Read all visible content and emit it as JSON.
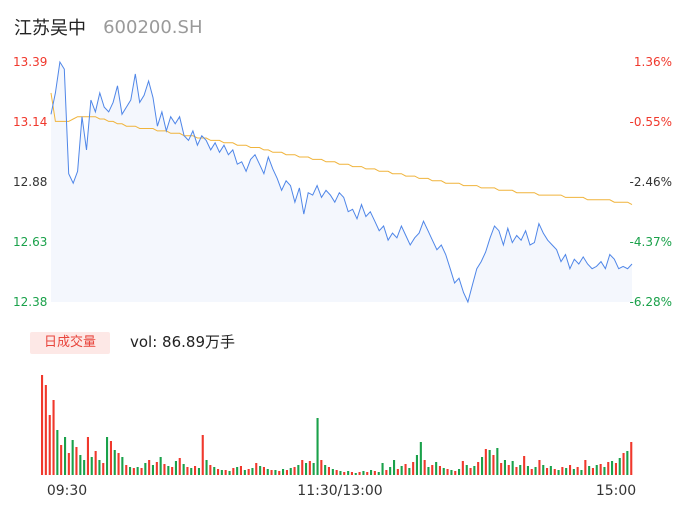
{
  "header": {
    "name": "江苏吴中",
    "code": "600200.SH"
  },
  "colors": {
    "up": "#f0382c",
    "down": "#1aa14a",
    "price_line": "#4f86e8",
    "avg_line": "#f0b43c",
    "area": "#f4f7fd"
  },
  "volume": {
    "badge": "日成交量",
    "text": "vol: 86.89万手"
  },
  "chart_data": {
    "type": "line",
    "title": "",
    "ylim": [
      12.38,
      13.39
    ],
    "price_ticks": [
      "13.39",
      "13.14",
      "12.88",
      "12.63",
      "12.38"
    ],
    "pct_ticks": [
      "1.36%",
      "-0.55%",
      "-2.46%",
      "-4.37%",
      "-6.28%"
    ],
    "time_labels": [
      "09:30",
      "11:30/13:00",
      "15:00"
    ],
    "series": [
      {
        "values": [
          13.17,
          13.26,
          13.39,
          13.36,
          12.92,
          12.88,
          12.93,
          13.16,
          13.02,
          13.23,
          13.18,
          13.26,
          13.2,
          13.18,
          13.22,
          13.29,
          13.17,
          13.2,
          13.23,
          13.34,
          13.22,
          13.25,
          13.31,
          13.24,
          13.12,
          13.18,
          13.1,
          13.16,
          13.13,
          13.16,
          13.08,
          13.06,
          13.1,
          13.04,
          13.08,
          13.06,
          13.02,
          13.05,
          13.01,
          13.04,
          13.0,
          13.02,
          12.96,
          12.97,
          12.93,
          12.98,
          13.0,
          12.96,
          12.92,
          12.99,
          12.94,
          12.9,
          12.85,
          12.89,
          12.87,
          12.8,
          12.86,
          12.75,
          12.84,
          12.83,
          12.87,
          12.82,
          12.85,
          12.83,
          12.8,
          12.84,
          12.82,
          12.76,
          12.77,
          12.73,
          12.79,
          12.74,
          12.76,
          12.72,
          12.68,
          12.7,
          12.64,
          12.67,
          12.65,
          12.7,
          12.66,
          12.62,
          12.65,
          12.67,
          12.72,
          12.68,
          12.64,
          12.6,
          12.62,
          12.58,
          12.52,
          12.46,
          12.48,
          12.42,
          12.38,
          12.45,
          12.52,
          12.55,
          12.59,
          12.65,
          12.7,
          12.68,
          12.62,
          12.69,
          12.63,
          12.66,
          12.64,
          12.68,
          12.62,
          12.63,
          12.71,
          12.67,
          12.64,
          12.62,
          12.6,
          12.55,
          12.58,
          12.52,
          12.56,
          12.54,
          12.57,
          12.54,
          12.52,
          12.53,
          12.55,
          12.52,
          12.58,
          12.56,
          12.52,
          12.53,
          12.52,
          12.54
        ],
        "style": "price"
      },
      {
        "values": [
          13.26,
          13.14,
          13.14,
          13.14,
          13.14,
          13.15,
          13.16,
          13.16,
          13.16,
          13.16,
          13.16,
          13.15,
          13.15,
          13.14,
          13.14,
          13.13,
          13.13,
          13.12,
          13.12,
          13.12,
          13.11,
          13.11,
          13.11,
          13.11,
          13.1,
          13.1,
          13.1,
          13.09,
          13.09,
          13.09,
          13.08,
          13.08,
          13.08,
          13.07,
          13.07,
          13.07,
          13.06,
          13.06,
          13.06,
          13.05,
          13.05,
          13.05,
          13.04,
          13.04,
          13.04,
          13.03,
          13.03,
          13.03,
          13.02,
          13.02,
          13.01,
          13.01,
          13.01,
          13.0,
          13.0,
          13.0,
          12.99,
          12.99,
          12.99,
          12.98,
          12.98,
          12.98,
          12.97,
          12.97,
          12.97,
          12.96,
          12.96,
          12.96,
          12.95,
          12.95,
          12.95,
          12.94,
          12.94,
          12.94,
          12.93,
          12.93,
          12.93,
          12.92,
          12.92,
          12.92,
          12.91,
          12.91,
          12.91,
          12.9,
          12.9,
          12.9,
          12.89,
          12.89,
          12.89,
          12.88,
          12.88,
          12.88,
          12.88,
          12.87,
          12.87,
          12.87,
          12.87,
          12.86,
          12.86,
          12.86,
          12.86,
          12.85,
          12.85,
          12.85,
          12.85,
          12.84,
          12.84,
          12.84,
          12.84,
          12.84,
          12.83,
          12.83,
          12.83,
          12.83,
          12.83,
          12.83,
          12.82,
          12.82,
          12.82,
          12.82,
          12.82,
          12.81,
          12.81,
          12.81,
          12.81,
          12.81,
          12.81,
          12.8,
          12.8,
          12.8,
          12.8,
          12.79
        ],
        "style": "average"
      }
    ],
    "volume_bars": [
      {
        "v": 100,
        "d": "up"
      },
      {
        "v": 90,
        "d": "up"
      },
      {
        "v": 60,
        "d": "up"
      },
      {
        "v": 75,
        "d": "up"
      },
      {
        "v": 45,
        "d": "down"
      },
      {
        "v": 30,
        "d": "up"
      },
      {
        "v": 38,
        "d": "down"
      },
      {
        "v": 22,
        "d": "up"
      },
      {
        "v": 35,
        "d": "down"
      },
      {
        "v": 28,
        "d": "up"
      },
      {
        "v": 20,
        "d": "down"
      },
      {
        "v": 15,
        "d": "down"
      },
      {
        "v": 38,
        "d": "up"
      },
      {
        "v": 18,
        "d": "down"
      },
      {
        "v": 24,
        "d": "up"
      },
      {
        "v": 15,
        "d": "down"
      },
      {
        "v": 12,
        "d": "up"
      },
      {
        "v": 38,
        "d": "down"
      },
      {
        "v": 34,
        "d": "up"
      },
      {
        "v": 25,
        "d": "down"
      },
      {
        "v": 22,
        "d": "up"
      },
      {
        "v": 18,
        "d": "down"
      },
      {
        "v": 10,
        "d": "up"
      },
      {
        "v": 8,
        "d": "down"
      },
      {
        "v": 7,
        "d": "up"
      },
      {
        "v": 8,
        "d": "down"
      },
      {
        "v": 7,
        "d": "up"
      },
      {
        "v": 12,
        "d": "down"
      },
      {
        "v": 15,
        "d": "up"
      },
      {
        "v": 10,
        "d": "down"
      },
      {
        "v": 13,
        "d": "up"
      },
      {
        "v": 18,
        "d": "down"
      },
      {
        "v": 11,
        "d": "up"
      },
      {
        "v": 9,
        "d": "down"
      },
      {
        "v": 8,
        "d": "up"
      },
      {
        "v": 14,
        "d": "down"
      },
      {
        "v": 17,
        "d": "up"
      },
      {
        "v": 11,
        "d": "down"
      },
      {
        "v": 8,
        "d": "up"
      },
      {
        "v": 7,
        "d": "down"
      },
      {
        "v": 9,
        "d": "up"
      },
      {
        "v": 7,
        "d": "down"
      },
      {
        "v": 40,
        "d": "up"
      },
      {
        "v": 15,
        "d": "down"
      },
      {
        "v": 10,
        "d": "up"
      },
      {
        "v": 8,
        "d": "down"
      },
      {
        "v": 6,
        "d": "up"
      },
      {
        "v": 5,
        "d": "down"
      },
      {
        "v": 5,
        "d": "up"
      },
      {
        "v": 4,
        "d": "down"
      },
      {
        "v": 7,
        "d": "up"
      },
      {
        "v": 8,
        "d": "down"
      },
      {
        "v": 9,
        "d": "up"
      },
      {
        "v": 5,
        "d": "down"
      },
      {
        "v": 6,
        "d": "up"
      },
      {
        "v": 7,
        "d": "down"
      },
      {
        "v": 12,
        "d": "up"
      },
      {
        "v": 9,
        "d": "down"
      },
      {
        "v": 8,
        "d": "up"
      },
      {
        "v": 6,
        "d": "down"
      },
      {
        "v": 5,
        "d": "up"
      },
      {
        "v": 5,
        "d": "down"
      },
      {
        "v": 4,
        "d": "up"
      },
      {
        "v": 6,
        "d": "down"
      },
      {
        "v": 5,
        "d": "up"
      },
      {
        "v": 7,
        "d": "down"
      },
      {
        "v": 8,
        "d": "up"
      },
      {
        "v": 10,
        "d": "down"
      },
      {
        "v": 15,
        "d": "up"
      },
      {
        "v": 12,
        "d": "down"
      },
      {
        "v": 14,
        "d": "up"
      },
      {
        "v": 12,
        "d": "down"
      },
      {
        "v": 57,
        "d": "down"
      },
      {
        "v": 15,
        "d": "up"
      },
      {
        "v": 10,
        "d": "down"
      },
      {
        "v": 8,
        "d": "up"
      },
      {
        "v": 6,
        "d": "down"
      },
      {
        "v": 5,
        "d": "up"
      },
      {
        "v": 4,
        "d": "down"
      },
      {
        "v": 3,
        "d": "up"
      },
      {
        "v": 4,
        "d": "down"
      },
      {
        "v": 3,
        "d": "up"
      },
      {
        "v": 2,
        "d": "down"
      },
      {
        "v": 3,
        "d": "up"
      },
      {
        "v": 4,
        "d": "down"
      },
      {
        "v": 3,
        "d": "up"
      },
      {
        "v": 5,
        "d": "down"
      },
      {
        "v": 4,
        "d": "up"
      },
      {
        "v": 3,
        "d": "down"
      },
      {
        "v": 12,
        "d": "down"
      },
      {
        "v": 5,
        "d": "up"
      },
      {
        "v": 8,
        "d": "down"
      },
      {
        "v": 15,
        "d": "down"
      },
      {
        "v": 6,
        "d": "up"
      },
      {
        "v": 9,
        "d": "down"
      },
      {
        "v": 11,
        "d": "up"
      },
      {
        "v": 7,
        "d": "down"
      },
      {
        "v": 13,
        "d": "up"
      },
      {
        "v": 20,
        "d": "down"
      },
      {
        "v": 33,
        "d": "down"
      },
      {
        "v": 15,
        "d": "up"
      },
      {
        "v": 8,
        "d": "down"
      },
      {
        "v": 10,
        "d": "up"
      },
      {
        "v": 13,
        "d": "down"
      },
      {
        "v": 9,
        "d": "up"
      },
      {
        "v": 7,
        "d": "down"
      },
      {
        "v": 6,
        "d": "up"
      },
      {
        "v": 5,
        "d": "down"
      },
      {
        "v": 4,
        "d": "up"
      },
      {
        "v": 6,
        "d": "down"
      },
      {
        "v": 14,
        "d": "up"
      },
      {
        "v": 10,
        "d": "down"
      },
      {
        "v": 7,
        "d": "up"
      },
      {
        "v": 9,
        "d": "down"
      },
      {
        "v": 13,
        "d": "up"
      },
      {
        "v": 18,
        "d": "down"
      },
      {
        "v": 26,
        "d": "up"
      },
      {
        "v": 25,
        "d": "down"
      },
      {
        "v": 20,
        "d": "up"
      },
      {
        "v": 27,
        "d": "down"
      },
      {
        "v": 12,
        "d": "up"
      },
      {
        "v": 15,
        "d": "down"
      },
      {
        "v": 10,
        "d": "up"
      },
      {
        "v": 14,
        "d": "down"
      },
      {
        "v": 8,
        "d": "up"
      },
      {
        "v": 10,
        "d": "down"
      },
      {
        "v": 19,
        "d": "up"
      },
      {
        "v": 9,
        "d": "down"
      },
      {
        "v": 6,
        "d": "up"
      },
      {
        "v": 8,
        "d": "down"
      },
      {
        "v": 15,
        "d": "up"
      },
      {
        "v": 10,
        "d": "down"
      },
      {
        "v": 7,
        "d": "up"
      },
      {
        "v": 9,
        "d": "down"
      },
      {
        "v": 6,
        "d": "up"
      },
      {
        "v": 5,
        "d": "down"
      },
      {
        "v": 8,
        "d": "up"
      },
      {
        "v": 7,
        "d": "down"
      },
      {
        "v": 10,
        "d": "up"
      },
      {
        "v": 6,
        "d": "down"
      },
      {
        "v": 8,
        "d": "up"
      },
      {
        "v": 5,
        "d": "down"
      },
      {
        "v": 15,
        "d": "up"
      },
      {
        "v": 9,
        "d": "down"
      },
      {
        "v": 7,
        "d": "up"
      },
      {
        "v": 10,
        "d": "down"
      },
      {
        "v": 11,
        "d": "up"
      },
      {
        "v": 8,
        "d": "down"
      },
      {
        "v": 13,
        "d": "up"
      },
      {
        "v": 14,
        "d": "down"
      },
      {
        "v": 12,
        "d": "up"
      },
      {
        "v": 17,
        "d": "down"
      },
      {
        "v": 22,
        "d": "up"
      },
      {
        "v": 24,
        "d": "down"
      },
      {
        "v": 33,
        "d": "up"
      }
    ]
  }
}
